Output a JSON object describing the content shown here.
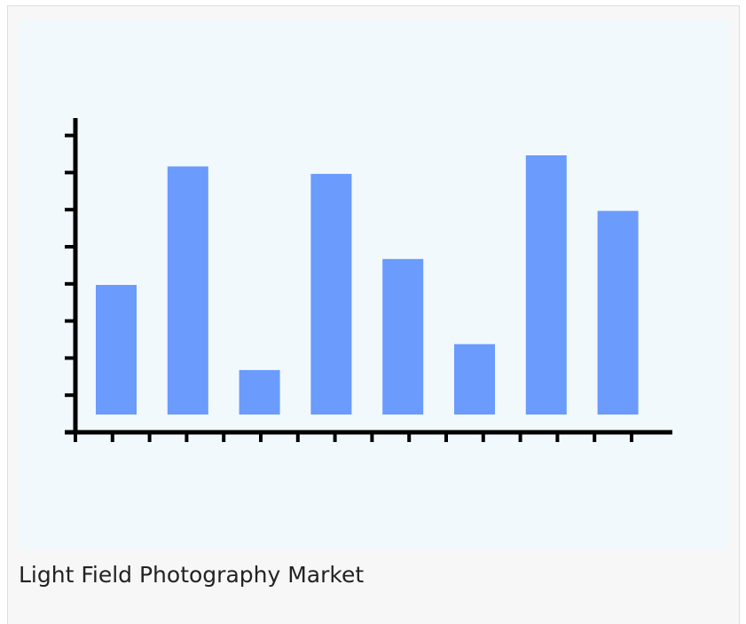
{
  "caption": "Light Field Photography Market",
  "colors": {
    "bar": "#6a9bfd",
    "axis": "#000000",
    "plot_background": "#f2f9fd",
    "card_background": "#f7f7f7"
  },
  "chart_data": {
    "type": "bar",
    "title": "",
    "xlabel": "",
    "ylabel": "",
    "categories": [
      "",
      "",
      "",
      "",
      "",
      "",
      "",
      ""
    ],
    "values": [
      3.5,
      6.7,
      1.2,
      6.5,
      4.2,
      1.9,
      7.0,
      5.5
    ],
    "ylim": [
      0,
      8
    ],
    "y_tick_count": 8,
    "x_tick_count": 16,
    "grid": false,
    "legend": "none"
  }
}
